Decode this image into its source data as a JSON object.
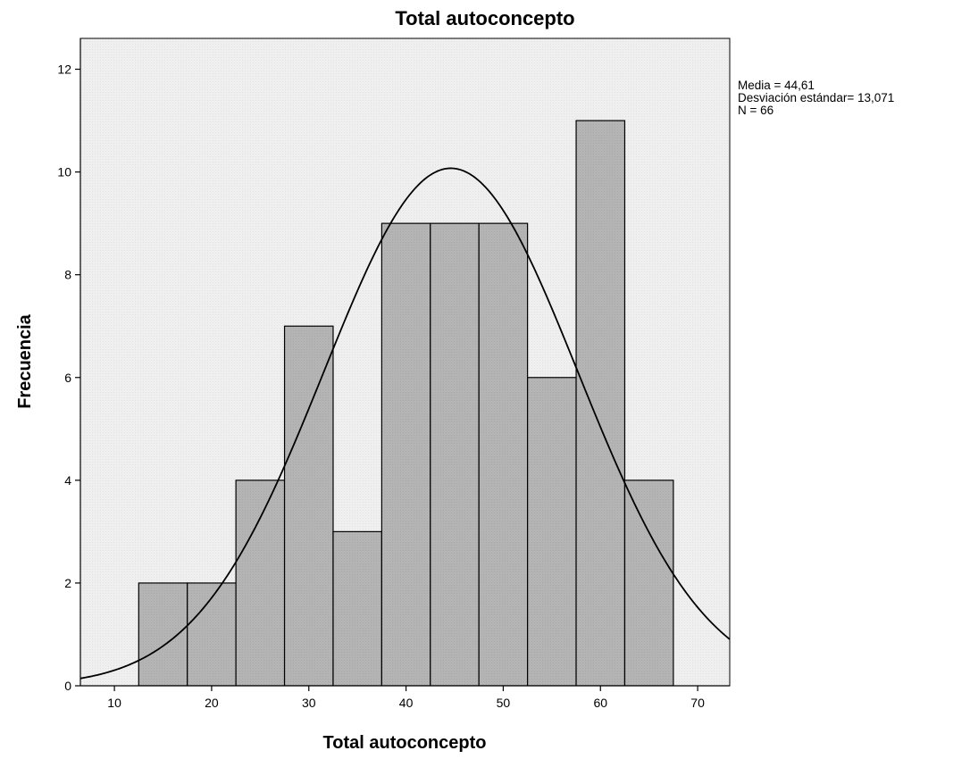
{
  "chart_data": {
    "type": "bar",
    "title": "Total autoconcepto",
    "xlabel": "Total autoconcepto",
    "ylabel": "Frecuencia",
    "bins": [
      {
        "start": 12.5,
        "end": 17.5,
        "count": 2
      },
      {
        "start": 17.5,
        "end": 22.5,
        "count": 2
      },
      {
        "start": 22.5,
        "end": 27.5,
        "count": 4
      },
      {
        "start": 27.5,
        "end": 32.5,
        "count": 7
      },
      {
        "start": 32.5,
        "end": 37.5,
        "count": 3
      },
      {
        "start": 37.5,
        "end": 42.5,
        "count": 9
      },
      {
        "start": 42.5,
        "end": 47.5,
        "count": 9
      },
      {
        "start": 47.5,
        "end": 52.5,
        "count": 9
      },
      {
        "start": 52.5,
        "end": 57.5,
        "count": 6
      },
      {
        "start": 57.5,
        "end": 62.5,
        "count": 11
      },
      {
        "start": 62.5,
        "end": 67.5,
        "count": 4
      }
    ],
    "xlim": [
      6.5,
      73.3
    ],
    "ylim": [
      0,
      12.6
    ],
    "xticks": [
      10,
      20,
      30,
      40,
      50,
      60,
      70
    ],
    "yticks": [
      0,
      2,
      4,
      6,
      8,
      10,
      12
    ],
    "normal_curve": {
      "mean": 44.61,
      "sd": 13.071,
      "n": 66,
      "bin_width": 5
    },
    "stats": [
      "Media = 44,61",
      "Desviación estándar= 13,071",
      "N = 66"
    ],
    "grid": false,
    "colors": {
      "bar_fill": "#b4b4b4",
      "plot_background": "#efefef",
      "curve": "#000000"
    }
  }
}
